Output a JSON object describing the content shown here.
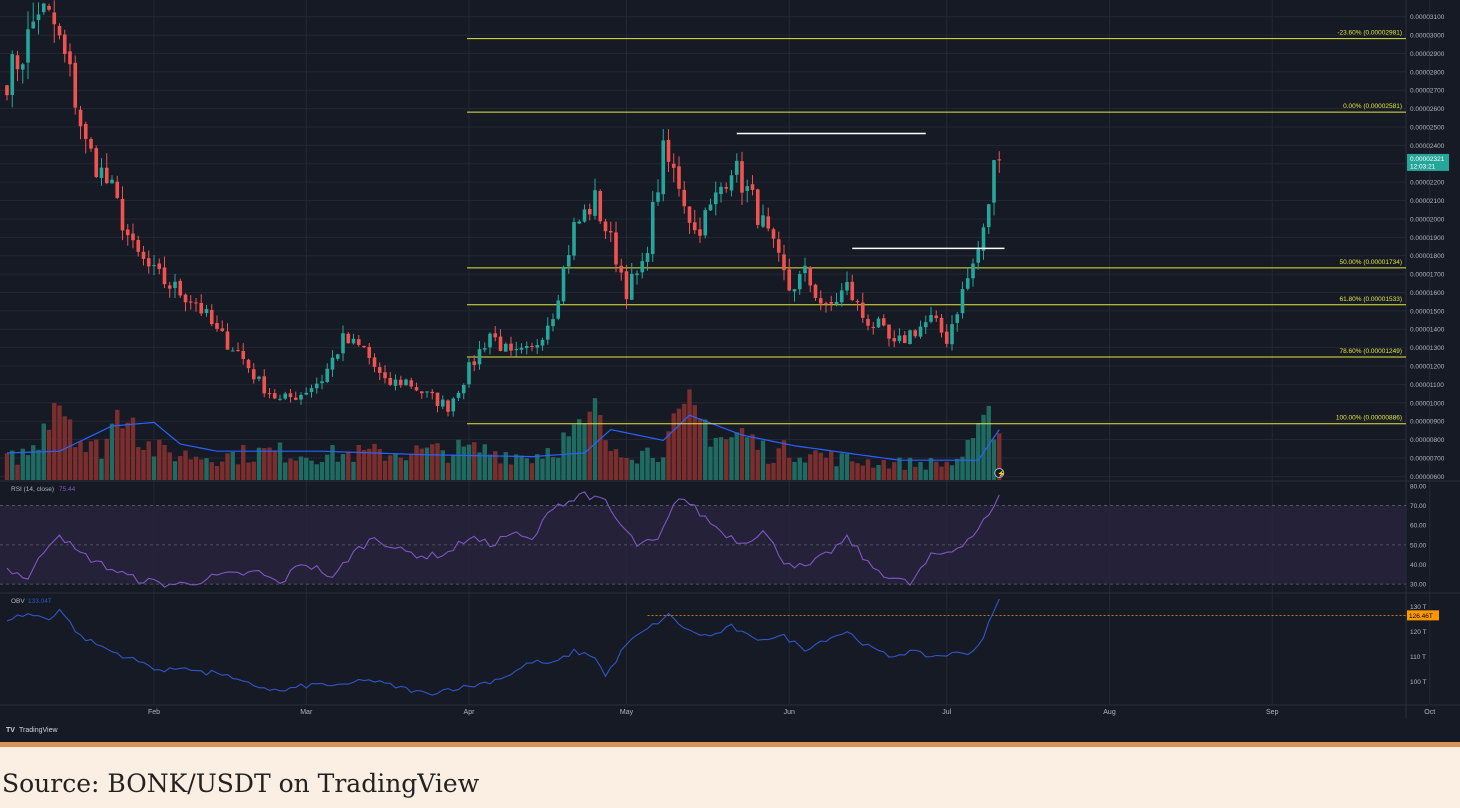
{
  "source": {
    "text": "Source: BONK/USDT on TradingView"
  },
  "brand": {
    "label": "TradingView",
    "icon": "tradingview-logo-icon"
  },
  "colors": {
    "background": "#161a25",
    "up": "#26a69a",
    "down": "#ef5350",
    "volume_up": "#1f6b62",
    "volume_down": "#7b2e2e",
    "volume_ma": "#2962ff",
    "fib": "#e5e53a",
    "rsi": "#7e57c2",
    "rsi_band": "#2a2440",
    "obv": "#2f56c9",
    "price_tag": "#26a69a",
    "obv_tag": "#ff9800",
    "text": "#b2b5be",
    "grid": "#232733",
    "source_bar": "#fbeee2",
    "source_border": "#d99558"
  },
  "chart_data": [
    {
      "type": "candlestick",
      "title": "",
      "y_ticks": [
        "0.00003100",
        "0.00003000",
        "0.00002900",
        "0.00002800",
        "0.00002700",
        "0.00002600",
        "0.00002500",
        "0.00002400",
        "0.00002300",
        "0.00002200",
        "0.00002100",
        "0.00002000",
        "0.00001900",
        "0.00001800",
        "0.00001700",
        "0.00001600",
        "0.00001500",
        "0.00001400",
        "0.00001300",
        "0.00001200",
        "0.00001100",
        "0.00001000",
        "0.00000900",
        "0.00000800",
        "0.00000700",
        "0.00000600"
      ],
      "ylim": [
        5.8e-06,
        3.18e-05
      ],
      "x_ticks": [
        "Feb",
        "Mar",
        "Apr",
        "May",
        "Jun",
        "Jul",
        "Aug",
        "Sep",
        "Oct"
      ],
      "last_price": {
        "value": "0.00002321",
        "countdown": "12:03:21"
      },
      "fib_levels": [
        {
          "label": "-23.60% (0.00002981)",
          "value": 2.981e-05
        },
        {
          "label": "0.00% (0.00002581)",
          "value": 2.581e-05
        },
        {
          "label": "50.00% (0.00001734)",
          "value": 1.734e-05
        },
        {
          "label": "61.80% (0.00001533)",
          "value": 1.533e-05
        },
        {
          "label": "78.60% (0.00001249)",
          "value": 1.249e-05
        },
        {
          "label": "100.00% (0.00000886)",
          "value": 8.86e-06
        }
      ],
      "horizontal_lines": [
        {
          "value": 2.465e-05,
          "from_day": 139,
          "to_day": 175,
          "color": "#ffffff"
        },
        {
          "value": 1.84e-05,
          "from_day": 161,
          "to_day": 190,
          "color": "#ffffff"
        }
      ],
      "candles_anchor": {
        "days": [
          0,
          3,
          6,
          9,
          12,
          15,
          20,
          24,
          28,
          32,
          36,
          40,
          44,
          48,
          52,
          56,
          60,
          64,
          68,
          72,
          76,
          80,
          84,
          88,
          92,
          96,
          100,
          104,
          108,
          112,
          116,
          118,
          121,
          125,
          128,
          131,
          134,
          138,
          142,
          145,
          149,
          152,
          156,
          160,
          163,
          166,
          169,
          172,
          176,
          179,
          182,
          184,
          186,
          188,
          189
        ],
        "closes": [
          2.77e-05,
          2.9e-05,
          3.15e-05,
          3.05e-05,
          2.78e-05,
          2.4e-05,
          2.15e-05,
          1.83e-05,
          1.7e-05,
          1.62e-05,
          1.55e-05,
          1.38e-05,
          1.28e-05,
          1.11e-05,
          1.01e-05,
          1.05e-05,
          1.13e-05,
          1.34e-05,
          1.29e-05,
          1.1e-05,
          1.12e-05,
          1.04e-05,
          9.8e-06,
          1.18e-05,
          1.38e-05,
          1.25e-05,
          1.28e-05,
          1.5e-05,
          1.95e-05,
          2.1e-05,
          1.8e-05,
          1.62e-05,
          1.72e-05,
          2.35e-05,
          2.2e-05,
          1.93e-05,
          2.05e-05,
          2.3e-05,
          2.1e-05,
          1.9e-05,
          1.62e-05,
          1.7e-05,
          1.5e-05,
          1.63e-05,
          1.47e-05,
          1.41e-05,
          1.3e-05,
          1.38e-05,
          1.45e-05,
          1.35e-05,
          1.6e-05,
          1.75e-05,
          1.92e-05,
          2.28e-05,
          2.32e-05
        ]
      },
      "volume_anchor": {
        "days": [
          0,
          5,
          9,
          12,
          15,
          18,
          23,
          26,
          30,
          40,
          50,
          60,
          70,
          80,
          90,
          100,
          107,
          110,
          113,
          114,
          117,
          120,
          124,
          130,
          137,
          140,
          145,
          150,
          160,
          170,
          180,
          184,
          186,
          187,
          188,
          189
        ],
        "values": [
          12,
          18,
          55,
          40,
          18,
          20,
          50,
          22,
          16,
          14,
          17,
          15,
          16,
          17,
          18,
          14,
          25,
          30,
          43,
          18,
          22,
          16,
          18,
          40,
          24,
          28,
          16,
          18,
          12,
          10,
          10,
          20,
          30,
          70,
          30,
          28
        ]
      },
      "volume_ma_anchor": {
        "days": [
          0,
          10,
          20,
          28,
          33,
          40,
          60,
          80,
          100,
          110,
          115,
          125,
          130,
          140,
          150,
          170,
          185,
          189
        ],
        "values": [
          15,
          16,
          30,
          32,
          20,
          16,
          16,
          14,
          13,
          15,
          28,
          22,
          36,
          25,
          19,
          11,
          11,
          28
        ]
      }
    },
    {
      "type": "line",
      "title": "",
      "indicator": "RSI (14, close)",
      "last_value": "75.44",
      "y_ticks": [
        "80.00",
        "70.00",
        "60.00",
        "50.00",
        "40.00",
        "30.00"
      ],
      "ylim": [
        26,
        82
      ],
      "band": [
        30,
        70
      ],
      "x_days": [
        0,
        4,
        8,
        10,
        13,
        18,
        24,
        30,
        34,
        40,
        48,
        52,
        56,
        60,
        62,
        64,
        66,
        70,
        75,
        80,
        84,
        88,
        92,
        96,
        100,
        104,
        108,
        110,
        112,
        114,
        116,
        120,
        124,
        128,
        130,
        132,
        136,
        140,
        144,
        148,
        152,
        156,
        160,
        162,
        164,
        168,
        172,
        176,
        180,
        184,
        186,
        188,
        189
      ],
      "values": [
        38,
        33,
        51,
        56,
        47,
        40,
        33,
        30,
        30,
        34,
        36,
        30,
        41,
        37,
        32,
        40,
        46,
        54,
        47,
        44,
        46,
        54,
        50,
        56,
        52,
        70,
        73,
        77,
        73,
        72,
        63,
        50,
        52,
        75,
        71,
        66,
        57,
        51,
        57,
        42,
        38,
        45,
        53,
        48,
        40,
        34,
        30,
        44,
        47,
        55,
        62,
        68,
        75.44
      ]
    },
    {
      "type": "line",
      "title": "",
      "indicator": "OBV",
      "last_value": "133.04T",
      "tag_value": "126.46T",
      "tag_level": 126.46,
      "y_ticks": [
        "130 T",
        "120 T",
        "110 T",
        "100 T"
      ],
      "ylim": [
        91,
        135
      ],
      "x_days": [
        0,
        4,
        8,
        10,
        14,
        20,
        25,
        30,
        34,
        38,
        40,
        44,
        48,
        52,
        56,
        60,
        64,
        68,
        72,
        76,
        80,
        84,
        88,
        92,
        96,
        100,
        104,
        108,
        112,
        114,
        118,
        122,
        126,
        130,
        134,
        138,
        142,
        148,
        152,
        156,
        160,
        164,
        168,
        172,
        176,
        180,
        184,
        186,
        188,
        189
      ],
      "values": [
        125,
        127,
        125,
        129,
        118,
        112,
        108,
        104,
        106,
        103,
        104,
        100,
        98,
        96,
        98,
        99,
        98,
        101,
        99,
        97,
        95,
        97,
        98,
        100,
        103,
        108,
        107,
        112,
        110,
        102,
        115,
        121,
        126.5,
        120,
        118,
        122,
        117,
        118,
        113,
        117,
        120,
        114,
        110,
        112,
        110,
        111,
        112,
        118,
        128,
        133.04
      ]
    }
  ]
}
